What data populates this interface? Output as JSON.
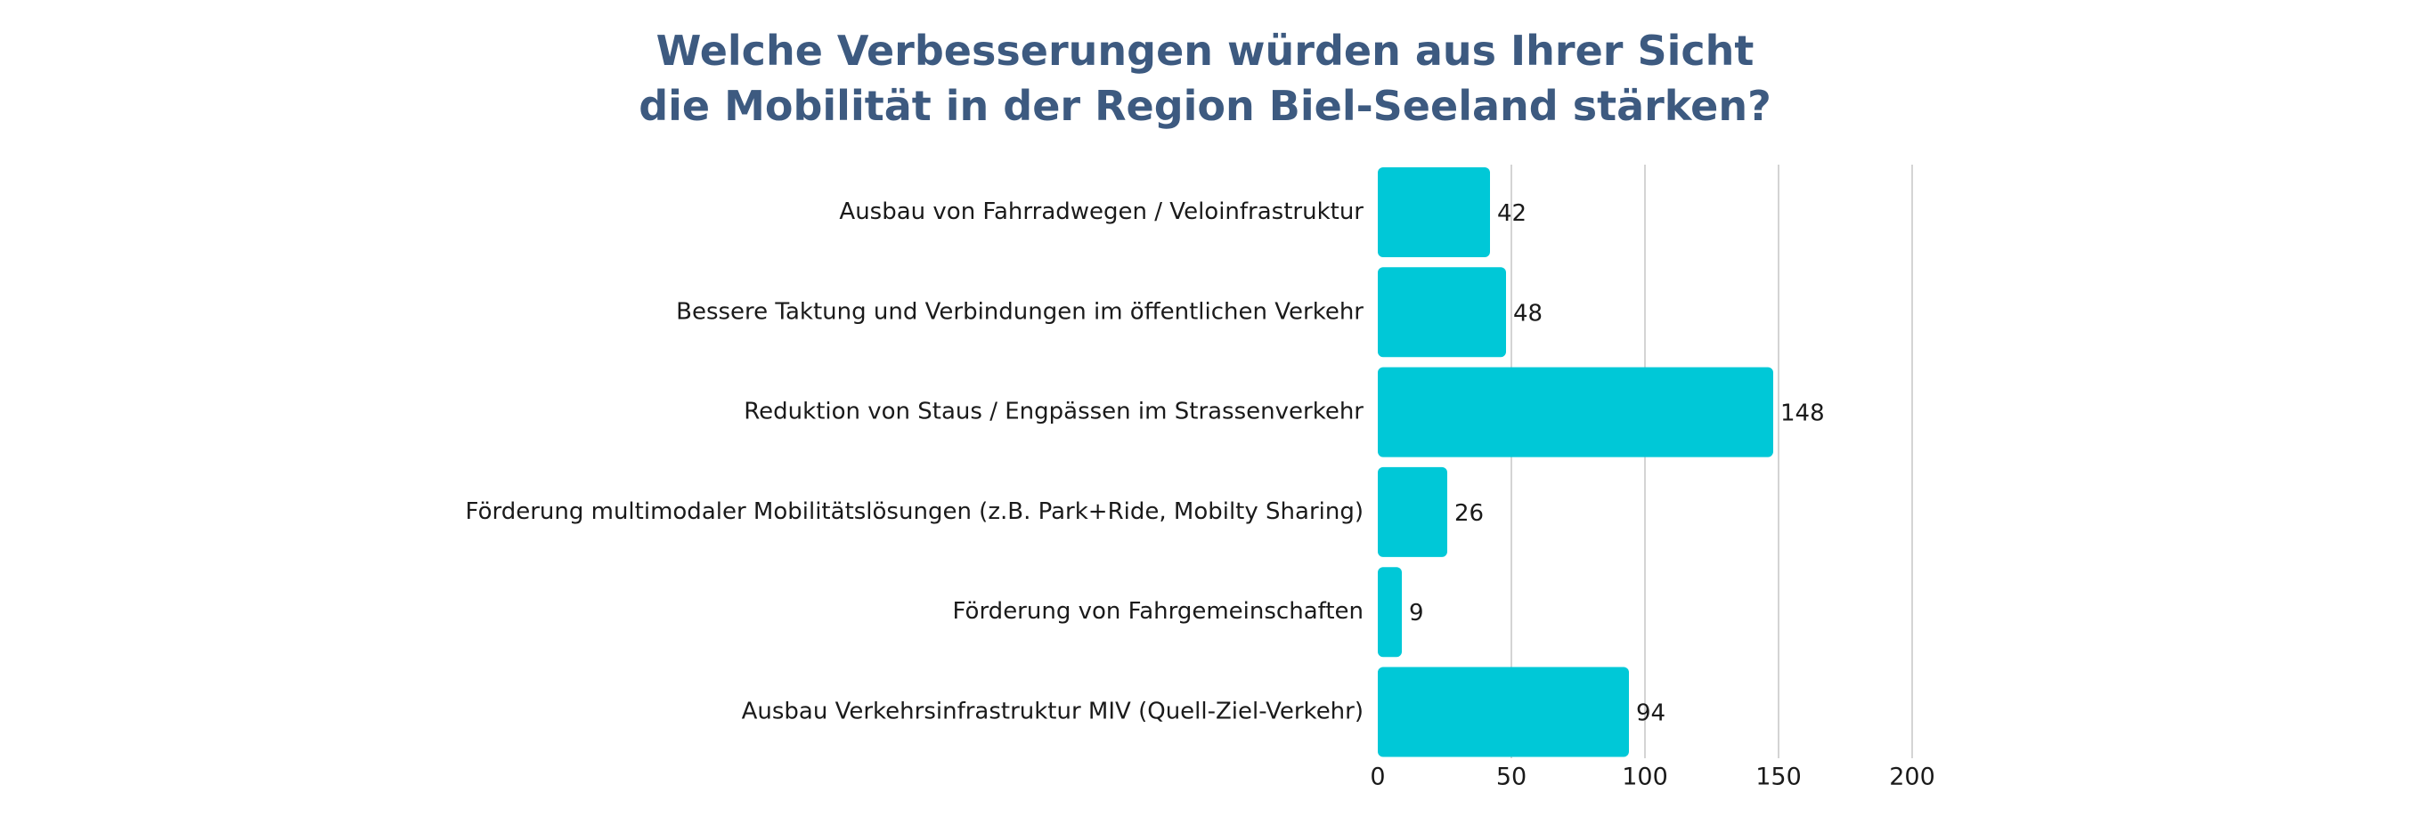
{
  "chart_data": {
    "type": "bar",
    "orientation": "horizontal",
    "title_lines": [
      "Welche Verbesserungen würden aus Ihrer Sicht",
      "die Mobilität in der Region Biel-Seeland stärken?"
    ],
    "categories": [
      "Ausbau von Fahrradwegen / Veloinfrastruktur",
      "Bessere Taktung und Verbindungen im öffentlichen Verkehr",
      "Reduktion von Staus / Engpässen im Strassenverkehr",
      "Förderung multimodaler Mobilitätslösungen (z.B. Park+Ride, Mobilty Sharing)",
      "Förderung von Fahrgemeinschaften",
      "Ausbau Verkehrsinfrastruktur MIV (Quell-Ziel-Verkehr)"
    ],
    "values": [
      42,
      48,
      148,
      26,
      9,
      94
    ],
    "value_labels": [
      "42",
      "48",
      "148",
      "26",
      "9",
      "94"
    ],
    "xlim": [
      0,
      200
    ],
    "xticks": [
      0,
      50,
      100,
      150,
      200
    ],
    "xtick_labels": [
      "0",
      "50",
      "100",
      "150",
      "200"
    ],
    "grid": true,
    "legend": "none",
    "bar_color": "#00c8d7",
    "grid_color": "#d4d4d4",
    "title_color": "#3d5a80"
  }
}
